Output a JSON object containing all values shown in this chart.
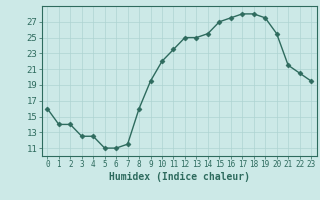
{
  "x": [
    0,
    1,
    2,
    3,
    4,
    5,
    6,
    7,
    8,
    9,
    10,
    11,
    12,
    13,
    14,
    15,
    16,
    17,
    18,
    19,
    20,
    21,
    22,
    23
  ],
  "y": [
    16,
    14,
    14,
    12.5,
    12.5,
    11,
    11,
    11.5,
    16,
    19.5,
    22,
    23.5,
    25,
    25,
    25.5,
    27,
    27.5,
    28,
    28,
    27.5,
    25.5,
    21.5,
    20.5,
    19.5
  ],
  "line_color": "#2e6b5e",
  "marker": "D",
  "markersize": 2.5,
  "bg_color": "#cce9e7",
  "grid_color": "#aed4d2",
  "xlabel": "Humidex (Indice chaleur)",
  "xlim": [
    -0.5,
    23.5
  ],
  "ylim": [
    10,
    29
  ],
  "yticks": [
    11,
    13,
    15,
    17,
    19,
    21,
    23,
    25,
    27
  ],
  "xtick_labels": [
    "0",
    "1",
    "2",
    "3",
    "4",
    "5",
    "6",
    "7",
    "8",
    "9",
    "10",
    "11",
    "12",
    "13",
    "14",
    "15",
    "16",
    "17",
    "18",
    "19",
    "20",
    "21",
    "22",
    "23"
  ],
  "tick_color": "#2e6b5e",
  "fontsize_xlabel": 7,
  "fontsize_ytick": 6.5,
  "fontsize_xtick": 5.5,
  "linewidth": 1.0
}
